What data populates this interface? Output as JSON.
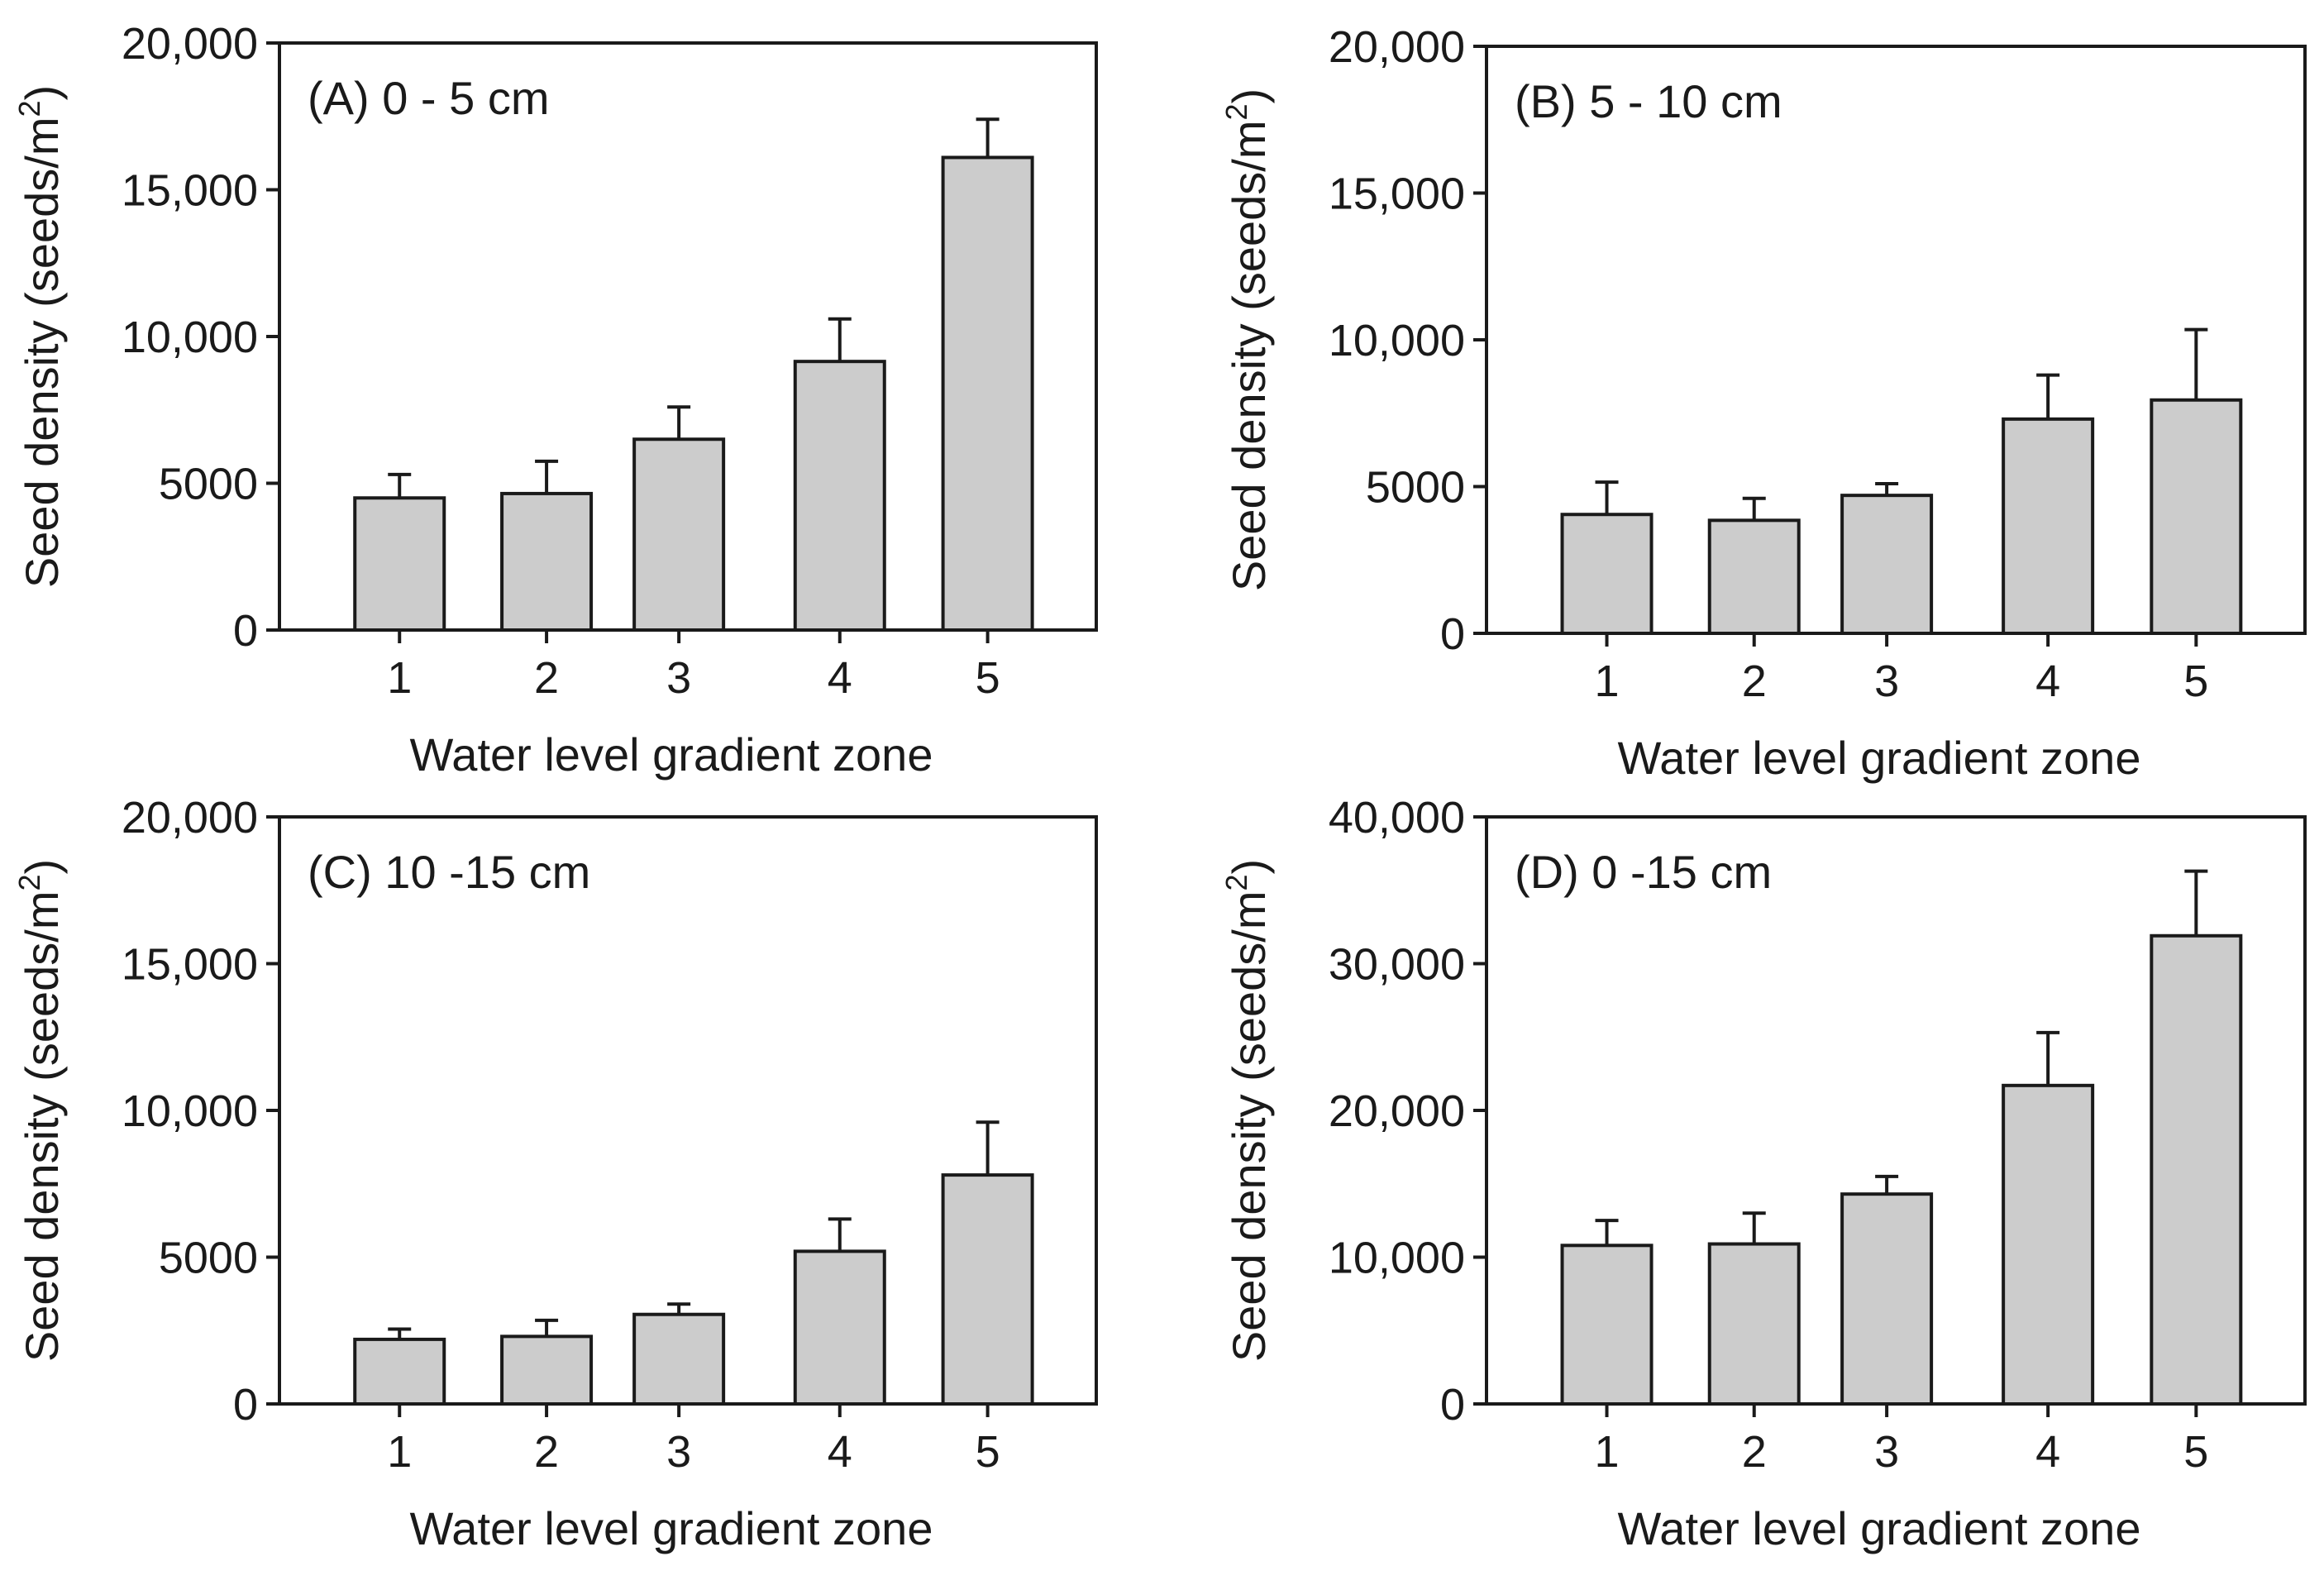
{
  "chart_data": [
    {
      "type": "bar",
      "title": "(A) 0 - 5 cm",
      "xlabel": "Water level gradient zone",
      "ylabel": "Seed density (seeds/m",
      "ylabel_sup": "2",
      "ylabel_close": ")",
      "categories": [
        "1",
        "2",
        "3",
        "4",
        "5"
      ],
      "values": [
        4500,
        4650,
        6500,
        9150,
        16100
      ],
      "errors": [
        800,
        1100,
        1100,
        1450,
        1300
      ],
      "ylim": [
        0,
        20000
      ],
      "yticks": [
        0,
        5000,
        10000,
        15000,
        20000
      ],
      "ytick_labels": [
        "0",
        "5000",
        "10,000",
        "15,000",
        "20,000"
      ]
    },
    {
      "type": "bar",
      "title": "(B) 5 - 10 cm",
      "xlabel": "Water level gradient zone",
      "ylabel": "Seed density (seeds/m",
      "ylabel_sup": "2",
      "ylabel_close": ")",
      "categories": [
        "1",
        "2",
        "3",
        "4",
        "5"
      ],
      "values": [
        4050,
        3850,
        4700,
        7300,
        7950
      ],
      "errors": [
        1100,
        750,
        400,
        1500,
        2400
      ],
      "ylim": [
        0,
        20000
      ],
      "yticks": [
        0,
        5000,
        10000,
        15000,
        20000
      ],
      "ytick_labels": [
        "0",
        "5000",
        "10,000",
        "15,000",
        "20,000"
      ]
    },
    {
      "type": "bar",
      "title": "(C) 10 -15 cm",
      "xlabel": "Water level gradient zone",
      "ylabel": "Seed density (seeds/m",
      "ylabel_sup": "2",
      "ylabel_close": ")",
      "categories": [
        "1",
        "2",
        "3",
        "4",
        "5"
      ],
      "values": [
        2200,
        2300,
        3050,
        5200,
        7800
      ],
      "errors": [
        350,
        550,
        350,
        1100,
        1800
      ],
      "ylim": [
        0,
        20000
      ],
      "yticks": [
        0,
        5000,
        10000,
        15000,
        20000
      ],
      "ytick_labels": [
        "0",
        "5000",
        "10,000",
        "15,000",
        "20,000"
      ]
    },
    {
      "type": "bar",
      "title": "(D) 0 -15 cm",
      "xlabel": "Water level gradient zone",
      "ylabel": "Seed density (seeds/m",
      "ylabel_sup": "2",
      "ylabel_close": ")",
      "categories": [
        "1",
        "2",
        "3",
        "4",
        "5"
      ],
      "values": [
        10800,
        10900,
        14300,
        21700,
        31900
      ],
      "errors": [
        1700,
        2100,
        1200,
        3600,
        4400
      ],
      "ylim": [
        0,
        40000
      ],
      "yticks": [
        0,
        10000,
        20000,
        30000,
        40000
      ],
      "ytick_labels": [
        "0",
        "10,000",
        "20,000",
        "30,000",
        "40,000"
      ]
    }
  ]
}
